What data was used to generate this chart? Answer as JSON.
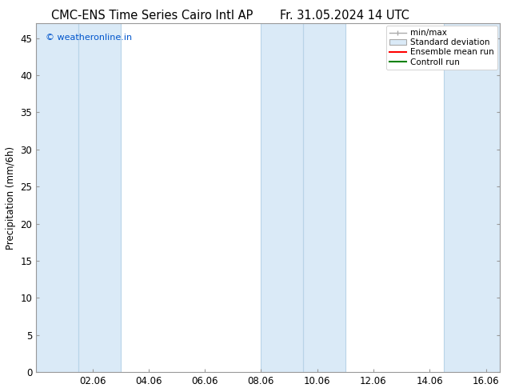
{
  "title_left": "CMC-ENS Time Series Cairo Intl AP",
  "title_right": "Fr. 31.05.2024 14 UTC",
  "ylabel": "Precipitation (mm/6h)",
  "watermark": "© weatheronline.in",
  "x_ticks": [
    2,
    4,
    6,
    8,
    10,
    12,
    14,
    16
  ],
  "x_tick_labels": [
    "02.06",
    "04.06",
    "06.06",
    "08.06",
    "10.06",
    "12.06",
    "14.06",
    "16.06"
  ],
  "x_min": 0.0,
  "x_max": 16.5,
  "y_min": 0,
  "y_max": 47,
  "y_ticks": [
    0,
    5,
    10,
    15,
    20,
    25,
    30,
    35,
    40,
    45
  ],
  "bg_color": "#ffffff",
  "plot_bg_color": "#ffffff",
  "shade_color": "#daeaf7",
  "shade_bands": [
    [
      0.0,
      1.5
    ],
    [
      1.5,
      3.0
    ],
    [
      8.0,
      9.5
    ],
    [
      9.5,
      11.0
    ],
    [
      14.5,
      16.5
    ]
  ],
  "band_edge_color": "#b8d4e8",
  "legend_items": [
    {
      "label": "min/max",
      "type": "minmax"
    },
    {
      "label": "Standard deviation",
      "type": "box"
    },
    {
      "label": "Ensemble mean run",
      "color": "#ff0000",
      "type": "line"
    },
    {
      "label": "Controll run",
      "color": "#008000",
      "type": "line"
    }
  ],
  "watermark_color": "#0055cc",
  "title_fontsize": 10.5,
  "tick_fontsize": 8.5,
  "ylabel_fontsize": 8.5,
  "legend_fontsize": 7.5,
  "spine_color": "#999999"
}
